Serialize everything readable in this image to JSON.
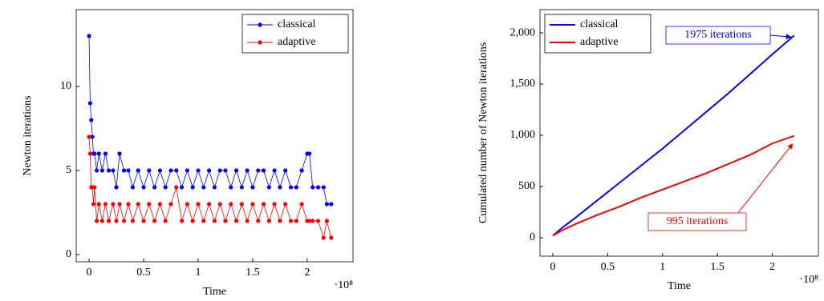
{
  "chart_data": [
    {
      "type": "line",
      "x_label": "Time",
      "y_label": "Newton iterations",
      "x_multiplier": "·10⁸",
      "x": [
        0,
        1000000,
        2000000,
        3000000,
        4000000,
        5000000,
        7000000,
        9000000,
        12000000,
        15000000,
        18000000,
        22000000,
        25000000,
        28000000,
        32000000,
        36000000,
        40000000,
        45000000,
        50000000,
        55000000,
        60000000,
        65000000,
        70000000,
        75000000,
        80000000,
        85000000,
        90000000,
        95000000,
        100000000,
        105000000,
        110000000,
        115000000,
        120000000,
        125000000,
        130000000,
        135000000,
        140000000,
        145000000,
        150000000,
        155000000,
        160000000,
        165000000,
        170000000,
        175000000,
        180000000,
        185000000,
        190000000,
        195000000,
        200000000,
        202000000,
        205000000,
        210000000,
        215000000,
        218000000,
        222000000
      ],
      "series": [
        {
          "name": "classical",
          "color": "#0000ff",
          "values": [
            13,
            9,
            8,
            7,
            6,
            6,
            5,
            6,
            5,
            6,
            5,
            5,
            4,
            6,
            5,
            5,
            4,
            5,
            4,
            5,
            4,
            5,
            4,
            5,
            5,
            4,
            5,
            4,
            5,
            4,
            5,
            4,
            5,
            5,
            4,
            5,
            4,
            5,
            4,
            5,
            5,
            4,
            5,
            4,
            5,
            4,
            4,
            5,
            6,
            6,
            4,
            4,
            4,
            3,
            3
          ]
        },
        {
          "name": "adaptive",
          "color": "#ff0000",
          "values": [
            7,
            6,
            4,
            4,
            3,
            4,
            2,
            3,
            2,
            3,
            2,
            3,
            2,
            3,
            2,
            3,
            2,
            3,
            2,
            3,
            2,
            3,
            2,
            3,
            4,
            2,
            3,
            2,
            3,
            2,
            3,
            2,
            3,
            2,
            3,
            2,
            3,
            2,
            3,
            2,
            3,
            2,
            3,
            2,
            3,
            2,
            2,
            3,
            2,
            2,
            2,
            2,
            1,
            2,
            1
          ]
        }
      ],
      "xlim": [
        -11800000,
        242000000
      ],
      "xticks": [
        0,
        {
          "value": 50000000,
          "label": "0.5"
        },
        {
          "value": 100000000,
          "label": "1"
        },
        {
          "value": 150000000,
          "label": "1.5"
        },
        {
          "value": 200000000,
          "label": "2"
        }
      ],
      "ylim": [
        -0.43,
        14.57
      ],
      "yticks": [
        0,
        5,
        10
      ],
      "markers": true,
      "legend": "top-right"
    },
    {
      "type": "line",
      "x_label": "Time",
      "y_label": "Cumulated number of Newton iterations",
      "x_multiplier": "·10⁸",
      "x": [
        0,
        10000000,
        20000000,
        40000000,
        60000000,
        80000000,
        100000000,
        120000000,
        140000000,
        160000000,
        180000000,
        200000000,
        220000000
      ],
      "series": [
        {
          "name": "classical",
          "color": "#0000ff",
          "values": [
            20,
            110,
            190,
            360,
            530,
            700,
            870,
            1050,
            1230,
            1410,
            1600,
            1790,
            1975
          ]
        },
        {
          "name": "adaptive",
          "color": "#ff0000",
          "values": [
            20,
            80,
            130,
            220,
            300,
            390,
            470,
            550,
            630,
            720,
            810,
            920,
            995
          ]
        }
      ],
      "annotations": [
        "1975 iterations",
        "995 iterations"
      ],
      "xlim": [
        -11700000,
        242000000
      ],
      "xticks": [
        0,
        {
          "value": 50000000,
          "label": "0.5"
        },
        {
          "value": 100000000,
          "label": "1"
        },
        {
          "value": 150000000,
          "label": "1.5"
        },
        {
          "value": 200000000,
          "label": "2"
        }
      ],
      "ylim": [
        -180,
        2227
      ],
      "yticks": [
        0,
        500,
        {
          "value": 1000,
          "label": "1,000"
        },
        {
          "value": 1500,
          "label": "1,500"
        },
        {
          "value": 2000,
          "label": "2,000"
        }
      ],
      "markers": false,
      "legend": "top-left"
    }
  ]
}
